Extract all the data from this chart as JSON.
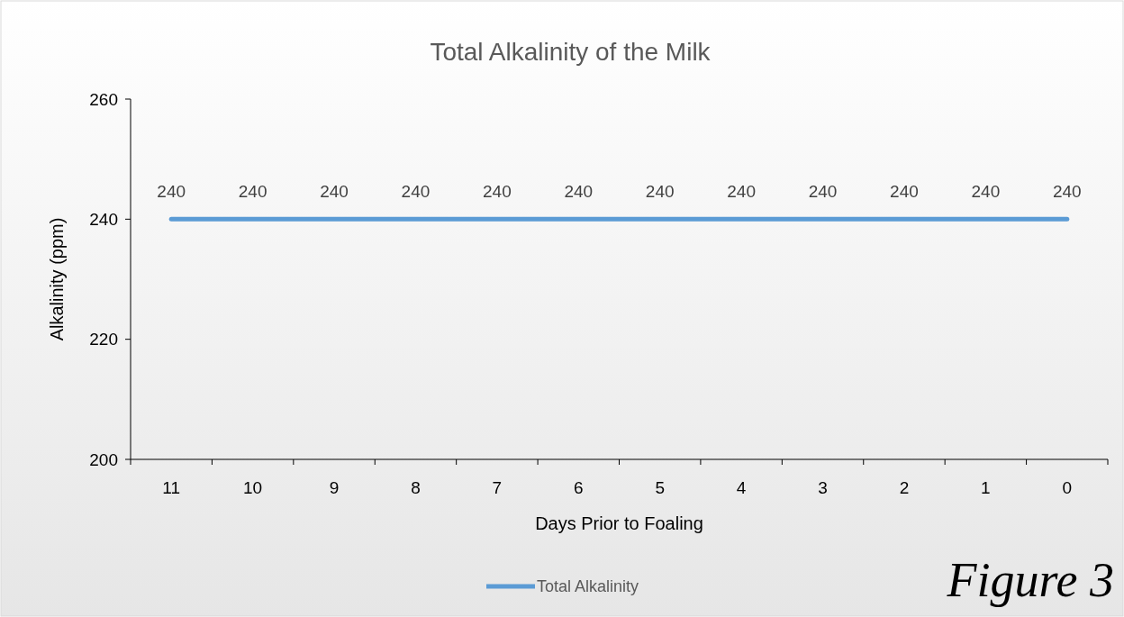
{
  "chart_data": {
    "type": "line",
    "title": "Total Alkalinity of the Milk",
    "xlabel": "Days Prior to Foaling",
    "ylabel": "Alkalinity (ppm)",
    "categories": [
      "11",
      "10",
      "9",
      "8",
      "7",
      "6",
      "5",
      "4",
      "3",
      "2",
      "1",
      "0"
    ],
    "series": [
      {
        "name": "Total Alkalinity",
        "color": "#5b9bd5",
        "values": [
          240,
          240,
          240,
          240,
          240,
          240,
          240,
          240,
          240,
          240,
          240,
          240
        ]
      }
    ],
    "ylim": [
      200,
      260
    ],
    "yticks": [
      200,
      220,
      240,
      260
    ],
    "data_labels": true,
    "grid": false,
    "legend": "bottom",
    "marker": "none",
    "annotations": [
      "Figure 3"
    ]
  }
}
